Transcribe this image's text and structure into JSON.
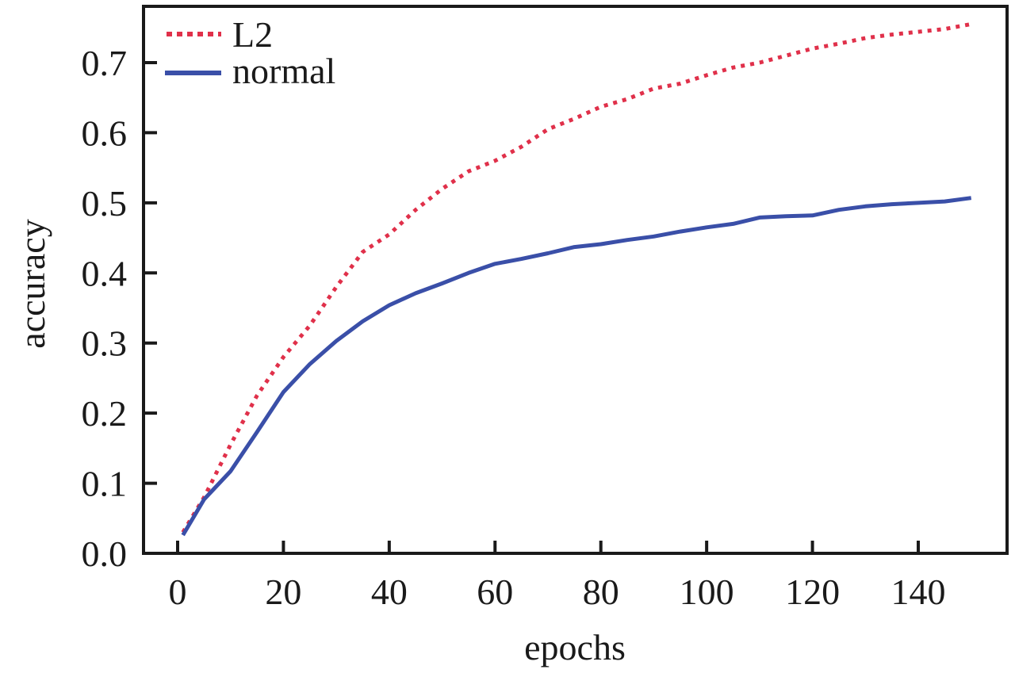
{
  "chart_data": {
    "type": "line",
    "title": "",
    "xlabel": "epochs",
    "ylabel": "accuracy",
    "xlim": [
      -6.5,
      157
    ],
    "ylim": [
      0.0,
      0.78
    ],
    "xticks": [
      0,
      20,
      40,
      60,
      80,
      100,
      120,
      140
    ],
    "xtick_labels": [
      "0",
      "20",
      "40",
      "60",
      "80",
      "100",
      "120",
      "140"
    ],
    "yticks": [
      0.0,
      0.1,
      0.2,
      0.3,
      0.4,
      0.5,
      0.6,
      0.7
    ],
    "ytick_labels": [
      "0.0",
      "0.1",
      "0.2",
      "0.3",
      "0.4",
      "0.5",
      "0.6",
      "0.7"
    ],
    "grid": false,
    "legend_position": "top-left",
    "x": [
      1,
      5,
      10,
      15,
      20,
      25,
      30,
      35,
      40,
      45,
      50,
      55,
      60,
      65,
      70,
      75,
      80,
      85,
      90,
      95,
      100,
      105,
      110,
      115,
      120,
      125,
      130,
      135,
      140,
      145,
      150
    ],
    "series": [
      {
        "name": "L2",
        "color": "#e0304a",
        "style": "dotted",
        "values": [
          0.03,
          0.08,
          0.155,
          0.225,
          0.28,
          0.325,
          0.38,
          0.43,
          0.455,
          0.49,
          0.52,
          0.545,
          0.56,
          0.58,
          0.605,
          0.62,
          0.637,
          0.648,
          0.663,
          0.67,
          0.682,
          0.693,
          0.7,
          0.71,
          0.72,
          0.727,
          0.735,
          0.74,
          0.744,
          0.748,
          0.755
        ]
      },
      {
        "name": "normal",
        "color": "#3a4fa8",
        "style": "solid",
        "values": [
          0.026,
          0.077,
          0.117,
          0.173,
          0.23,
          0.27,
          0.303,
          0.331,
          0.354,
          0.371,
          0.385,
          0.4,
          0.413,
          0.42,
          0.428,
          0.437,
          0.441,
          0.447,
          0.452,
          0.459,
          0.465,
          0.47,
          0.479,
          0.481,
          0.482,
          0.49,
          0.495,
          0.498,
          0.5,
          0.502,
          0.507
        ]
      }
    ]
  }
}
